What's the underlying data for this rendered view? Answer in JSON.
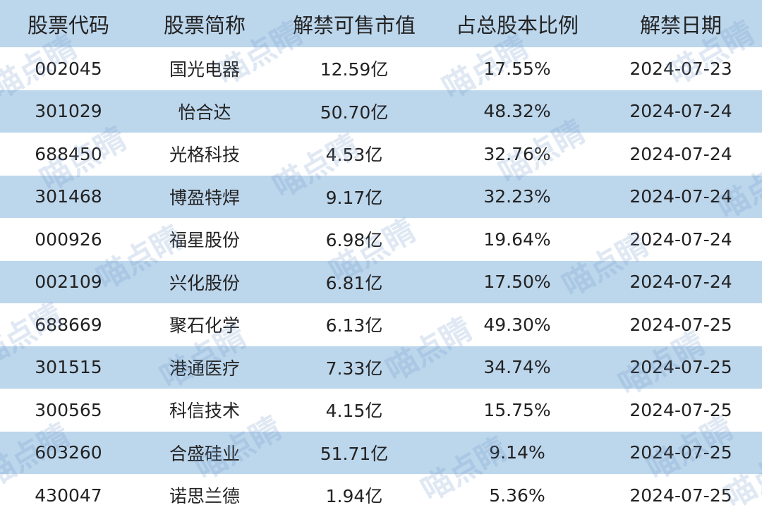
{
  "watermark": "喵点睛",
  "table": {
    "header": [
      "股票代码",
      "股票简称",
      "解禁可售市值",
      "占总股本比例",
      "解禁日期"
    ],
    "rows": [
      [
        "002045",
        "国光电器",
        "12.59亿",
        "17.55%",
        "2024-07-23"
      ],
      [
        "301029",
        "怡合达",
        "50.70亿",
        "48.32%",
        "2024-07-24"
      ],
      [
        "688450",
        "光格科技",
        "4.53亿",
        "32.76%",
        "2024-07-24"
      ],
      [
        "301468",
        "博盈特焊",
        "9.17亿",
        "32.23%",
        "2024-07-24"
      ],
      [
        "000926",
        "福星股份",
        "6.98亿",
        "19.64%",
        "2024-07-24"
      ],
      [
        "002109",
        "兴化股份",
        "6.81亿",
        "17.50%",
        "2024-07-24"
      ],
      [
        "688669",
        "聚石化学",
        "6.13亿",
        "49.30%",
        "2024-07-25"
      ],
      [
        "301515",
        "港通医疗",
        "7.33亿",
        "34.74%",
        "2024-07-25"
      ],
      [
        "300565",
        "科信技术",
        "4.15亿",
        "15.75%",
        "2024-07-25"
      ],
      [
        "603260",
        "合盛硅业",
        "51.71亿",
        "9.14%",
        "2024-07-25"
      ],
      [
        "430047",
        "诺思兰德",
        "1.94亿",
        "5.36%",
        "2024-07-25"
      ]
    ]
  }
}
